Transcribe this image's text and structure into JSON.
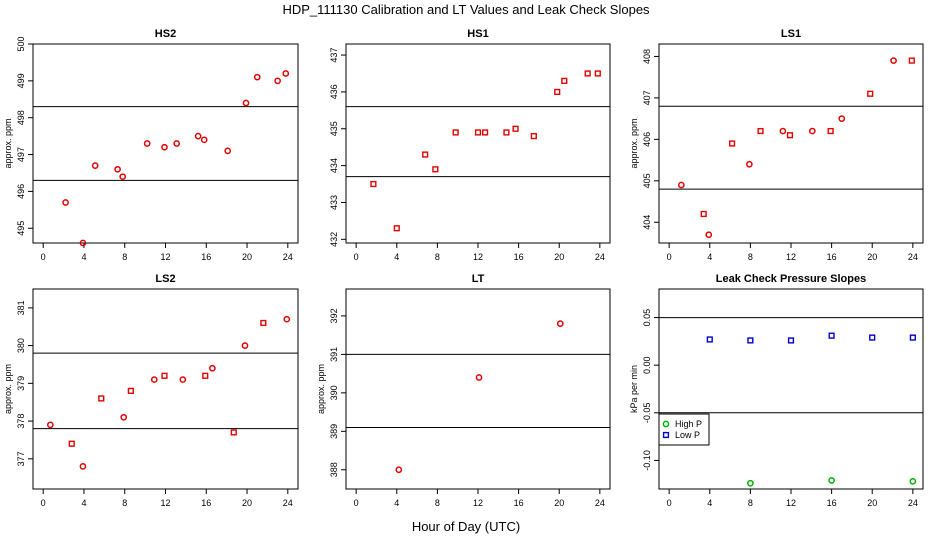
{
  "figure": {
    "title": "HDP_111130  Calibration and LT Values and Leak Check Slopes",
    "xlabel": "Hour of Day (UTC)"
  },
  "colors": {
    "cal": "#e00000",
    "high": "#00b000",
    "low": "#0000cc",
    "axis": "#000000"
  },
  "chart_data": [
    {
      "type": "scatter",
      "title": "HS2",
      "ylabel": "approx. ppm",
      "xlim": [
        -1,
        25
      ],
      "ylim": [
        494.6,
        500
      ],
      "yticks": [
        495,
        496,
        497,
        498,
        499,
        500
      ],
      "xticks": [
        0,
        4,
        8,
        12,
        16,
        20,
        24
      ],
      "hlines": [
        496.3,
        498.3
      ],
      "marker": "circle",
      "points": [
        [
          2.2,
          495.7
        ],
        [
          3.9,
          494.6
        ],
        [
          5.1,
          496.7
        ],
        [
          7.3,
          496.6
        ],
        [
          7.8,
          496.4
        ],
        [
          10.2,
          497.3
        ],
        [
          11.9,
          497.2
        ],
        [
          13.1,
          497.3
        ],
        [
          15.2,
          497.5
        ],
        [
          15.8,
          497.4
        ],
        [
          18.1,
          497.1
        ],
        [
          19.9,
          498.4
        ],
        [
          21.0,
          499.1
        ],
        [
          23.0,
          499.0
        ],
        [
          23.8,
          499.2
        ]
      ]
    },
    {
      "type": "scatter",
      "title": "HS1",
      "ylabel": "",
      "xlim": [
        -1,
        25
      ],
      "ylim": [
        431.9,
        437.3
      ],
      "yticks": [
        432,
        433,
        434,
        435,
        436,
        437
      ],
      "xticks": [
        0,
        4,
        8,
        12,
        16,
        20,
        24
      ],
      "hlines": [
        433.7,
        435.6
      ],
      "marker": "square",
      "points": [
        [
          1.7,
          433.5
        ],
        [
          4.0,
          432.3
        ],
        [
          6.8,
          434.3
        ],
        [
          7.8,
          433.9
        ],
        [
          9.8,
          434.9
        ],
        [
          12.0,
          434.9
        ],
        [
          12.7,
          434.9
        ],
        [
          14.8,
          434.9
        ],
        [
          15.7,
          435.0
        ],
        [
          17.5,
          434.8
        ],
        [
          19.8,
          436.0
        ],
        [
          20.5,
          436.3
        ],
        [
          22.8,
          436.5
        ],
        [
          23.8,
          436.5
        ]
      ]
    },
    {
      "type": "scatter",
      "title": "LS1",
      "ylabel": "approx. ppm",
      "xlim": [
        -1,
        25
      ],
      "ylim": [
        403.5,
        408.3
      ],
      "yticks": [
        404,
        405,
        406,
        407,
        408
      ],
      "xticks": [
        0,
        4,
        8,
        12,
        16,
        20,
        24
      ],
      "hlines": [
        404.8,
        406.8
      ],
      "marker": "mixed",
      "points": [
        [
          1.2,
          404.9
        ],
        [
          3.4,
          404.2
        ],
        [
          3.9,
          403.7
        ],
        [
          6.2,
          405.9
        ],
        [
          7.9,
          405.4
        ],
        [
          9.0,
          406.2
        ],
        [
          11.2,
          406.2
        ],
        [
          11.9,
          406.1
        ],
        [
          14.1,
          406.2
        ],
        [
          15.9,
          406.2
        ],
        [
          17.0,
          406.5
        ],
        [
          19.8,
          407.1
        ],
        [
          22.1,
          407.9
        ],
        [
          23.9,
          407.9
        ]
      ]
    },
    {
      "type": "scatter",
      "title": "LS2",
      "ylabel": "approx. ppm",
      "xlim": [
        -1,
        25
      ],
      "ylim": [
        376.2,
        381.5
      ],
      "yticks": [
        377,
        378,
        379,
        380,
        381
      ],
      "xticks": [
        0,
        4,
        8,
        12,
        16,
        20,
        24
      ],
      "hlines": [
        377.8,
        379.8
      ],
      "marker": "mixed",
      "points": [
        [
          0.7,
          377.9
        ],
        [
          2.8,
          377.4
        ],
        [
          3.9,
          376.8
        ],
        [
          5.7,
          378.6
        ],
        [
          7.9,
          378.1
        ],
        [
          8.6,
          378.8
        ],
        [
          10.9,
          379.1
        ],
        [
          11.9,
          379.2
        ],
        [
          13.7,
          379.1
        ],
        [
          15.9,
          379.2
        ],
        [
          16.6,
          379.4
        ],
        [
          18.7,
          377.7
        ],
        [
          19.8,
          380.0
        ],
        [
          21.6,
          380.6
        ],
        [
          23.9,
          380.7
        ]
      ]
    },
    {
      "type": "scatter",
      "title": "LT",
      "ylabel": "approx. ppm",
      "xlim": [
        -1,
        25
      ],
      "ylim": [
        387.5,
        392.7
      ],
      "yticks": [
        388,
        389,
        390,
        391,
        392
      ],
      "xticks": [
        0,
        4,
        8,
        12,
        16,
        20,
        24
      ],
      "hlines": [
        389.1,
        391.0
      ],
      "marker": "circle",
      "points": [
        [
          4.2,
          388.0
        ],
        [
          12.1,
          390.4
        ],
        [
          20.1,
          391.8
        ]
      ]
    },
    {
      "type": "scatter",
      "title": "Leak Check Pressure Slopes",
      "ylabel": "kPa per min",
      "xlim": [
        -1,
        25
      ],
      "ylim": [
        -0.13,
        0.08
      ],
      "yticks": [
        -0.1,
        -0.05,
        0.0,
        0.05
      ],
      "ytick_labels": [
        "-0.10",
        "-0.05",
        "0.00",
        "0.05"
      ],
      "xticks": [
        0,
        4,
        8,
        12,
        16,
        20,
        24
      ],
      "hlines": [
        -0.05,
        0.05
      ],
      "series": [
        {
          "name": "High P",
          "marker": "circle",
          "color": "#00b000",
          "points": [
            [
              8.0,
              -0.124
            ],
            [
              16.0,
              -0.121
            ],
            [
              24.0,
              -0.122
            ]
          ]
        },
        {
          "name": "Low P",
          "marker": "square",
          "color": "#0000cc",
          "points": [
            [
              4.0,
              0.027
            ],
            [
              8.0,
              0.026
            ],
            [
              12.0,
              0.026
            ],
            [
              16.0,
              0.031
            ],
            [
              20.0,
              0.029
            ],
            [
              24.0,
              0.029
            ]
          ]
        }
      ],
      "legend": "bottom-left"
    }
  ]
}
